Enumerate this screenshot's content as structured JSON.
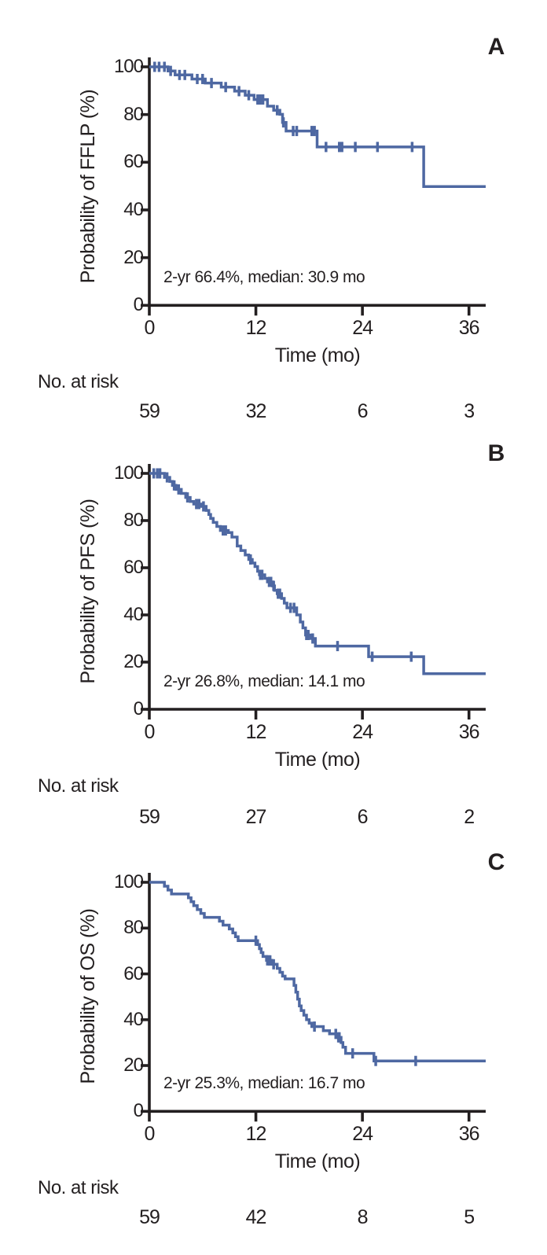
{
  "figure": {
    "colors": {
      "curve": "#4e68a2",
      "axis": "#231f20",
      "text": "#231f20"
    },
    "panels": [
      {
        "label": "A",
        "y_axis_title": "Probability of FFLP (%)",
        "x_axis_title": "Time (mo)",
        "annotation": "2-yr 66.4%, median: 30.9 mo",
        "two_year_pct": 66.4,
        "median_mo": 30.9,
        "no_at_risk_label": "No. at risk",
        "risk_counts": [
          "59",
          "32",
          "6",
          "3"
        ],
        "chart_data": {
          "type": "line",
          "subtype": "kaplan-meier-step",
          "title": "",
          "xlabel": "Time (mo)",
          "ylabel": "Probability of FFLP (%)",
          "xlim": [
            0,
            37.9
          ],
          "ylim": [
            0,
            100
          ],
          "x_ticks": [
            0,
            12,
            24,
            36
          ],
          "y_ticks": [
            0,
            20,
            40,
            60,
            80,
            100
          ],
          "steps": [
            [
              0,
              100
            ],
            [
              2.1,
              98.3
            ],
            [
              2.9,
              96.6
            ],
            [
              4.8,
              94.9
            ],
            [
              6.3,
              93.2
            ],
            [
              8.1,
              91.5
            ],
            [
              9.6,
              89.8
            ],
            [
              10.8,
              88.1
            ],
            [
              11.8,
              86.3
            ],
            [
              13.3,
              83.5
            ],
            [
              14.0,
              81.8
            ],
            [
              14.7,
              80.1
            ],
            [
              15.0,
              76.7
            ],
            [
              15.4,
              73.1
            ],
            [
              18.9,
              66.4
            ],
            [
              30.9,
              49.8
            ]
          ],
          "censors": [
            [
              0.6,
              100
            ],
            [
              1.1,
              100
            ],
            [
              1.7,
              100
            ],
            [
              2.4,
              98.3
            ],
            [
              3.4,
              96.6
            ],
            [
              4.0,
              96.6
            ],
            [
              5.4,
              94.9
            ],
            [
              6.0,
              94.9
            ],
            [
              7.0,
              93.2
            ],
            [
              8.6,
              91.5
            ],
            [
              10.1,
              89.8
            ],
            [
              11.2,
              88.1
            ],
            [
              12.2,
              86.3
            ],
            [
              12.5,
              86.3
            ],
            [
              12.8,
              86.3
            ],
            [
              14.4,
              81.8
            ],
            [
              15.1,
              76.7
            ],
            [
              16.2,
              73.1
            ],
            [
              16.6,
              73.1
            ],
            [
              18.3,
              73.1
            ],
            [
              18.6,
              73.1
            ],
            [
              19.9,
              66.4
            ],
            [
              21.4,
              66.4
            ],
            [
              21.7,
              66.4
            ],
            [
              23.2,
              66.4
            ],
            [
              25.7,
              66.4
            ],
            [
              29.6,
              66.4
            ]
          ]
        }
      },
      {
        "label": "B",
        "y_axis_title": "Probability of PFS (%)",
        "x_axis_title": "Time (mo)",
        "annotation": "2-yr 26.8%, median: 14.1 mo",
        "two_year_pct": 26.8,
        "median_mo": 14.1,
        "no_at_risk_label": "No. at risk",
        "risk_counts": [
          "59",
          "27",
          "6",
          "2"
        ],
        "chart_data": {
          "type": "line",
          "subtype": "kaplan-meier-step",
          "title": "",
          "xlabel": "Time (mo)",
          "ylabel": "Probability of PFS (%)",
          "xlim": [
            0,
            37.9
          ],
          "ylim": [
            0,
            100
          ],
          "x_ticks": [
            0,
            12,
            24,
            36
          ],
          "y_ticks": [
            0,
            20,
            40,
            60,
            80,
            100
          ],
          "steps": [
            [
              0,
              100
            ],
            [
              1.7,
              98.3
            ],
            [
              2.3,
              96.6
            ],
            [
              2.6,
              94.9
            ],
            [
              3.0,
              93.2
            ],
            [
              3.6,
              91.5
            ],
            [
              4.1,
              89.8
            ],
            [
              4.6,
              88.1
            ],
            [
              5.0,
              87.0
            ],
            [
              5.9,
              86.0
            ],
            [
              6.4,
              84.3
            ],
            [
              6.7,
              82.6
            ],
            [
              6.9,
              80.9
            ],
            [
              7.2,
              79.2
            ],
            [
              7.6,
              77.5
            ],
            [
              8.0,
              75.8
            ],
            [
              8.9,
              74.9
            ],
            [
              9.3,
              73.0
            ],
            [
              9.9,
              69.2
            ],
            [
              10.3,
              67.3
            ],
            [
              10.8,
              65.4
            ],
            [
              11.2,
              63.5
            ],
            [
              11.6,
              62.0
            ],
            [
              11.9,
              60.5
            ],
            [
              12.2,
              58.5
            ],
            [
              12.4,
              57.0
            ],
            [
              13.0,
              55.5
            ],
            [
              13.3,
              54.0
            ],
            [
              13.9,
              52.3
            ],
            [
              14.1,
              50.4
            ],
            [
              14.4,
              49.0
            ],
            [
              14.9,
              47.0
            ],
            [
              15.2,
              45.0
            ],
            [
              15.5,
              43.0
            ],
            [
              16.6,
              40.0
            ],
            [
              17.0,
              37.0
            ],
            [
              17.3,
              34.5
            ],
            [
              17.6,
              31.5
            ],
            [
              18.2,
              30.0
            ],
            [
              18.7,
              26.8
            ],
            [
              24.7,
              22.3
            ],
            [
              30.9,
              15.1
            ]
          ],
          "censors": [
            [
              0.5,
              100
            ],
            [
              0.9,
              100
            ],
            [
              1.2,
              100
            ],
            [
              2.0,
              98.3
            ],
            [
              2.8,
              94.9
            ],
            [
              3.3,
              93.2
            ],
            [
              4.3,
              89.8
            ],
            [
              5.3,
              87.0
            ],
            [
              5.6,
              87.0
            ],
            [
              6.1,
              86.0
            ],
            [
              8.3,
              75.8
            ],
            [
              8.6,
              75.8
            ],
            [
              11.4,
              63.5
            ],
            [
              12.5,
              57.0
            ],
            [
              12.7,
              57.0
            ],
            [
              13.5,
              54.0
            ],
            [
              13.7,
              54.0
            ],
            [
              14.0,
              52.3
            ],
            [
              14.5,
              49.0
            ],
            [
              14.7,
              49.0
            ],
            [
              15.9,
              43.0
            ],
            [
              16.3,
              43.0
            ],
            [
              17.7,
              31.5
            ],
            [
              17.9,
              31.5
            ],
            [
              18.4,
              30.0
            ],
            [
              21.2,
              26.8
            ],
            [
              25.1,
              22.3
            ],
            [
              29.5,
              22.3
            ]
          ]
        }
      },
      {
        "label": "C",
        "y_axis_title": "Probability of OS (%)",
        "x_axis_title": "Time (mo)",
        "annotation": "2-yr 25.3%, median: 16.7 mo",
        "two_year_pct": 25.3,
        "median_mo": 16.7,
        "no_at_risk_label": "No. at risk",
        "risk_counts": [
          "59",
          "42",
          "8",
          "5"
        ],
        "chart_data": {
          "type": "line",
          "subtype": "kaplan-meier-step",
          "title": "",
          "xlabel": "Time (mo)",
          "ylabel": "Probability of OS (%)",
          "xlim": [
            0,
            37.9
          ],
          "ylim": [
            0,
            100
          ],
          "x_ticks": [
            0,
            12,
            24,
            36
          ],
          "y_ticks": [
            0,
            20,
            40,
            60,
            80,
            100
          ],
          "steps": [
            [
              0,
              100
            ],
            [
              1.7,
              98.3
            ],
            [
              2.1,
              96.6
            ],
            [
              2.5,
              94.9
            ],
            [
              4.4,
              93.2
            ],
            [
              4.7,
              91.5
            ],
            [
              5.0,
              89.8
            ],
            [
              5.4,
              88.1
            ],
            [
              5.8,
              86.4
            ],
            [
              6.2,
              84.7
            ],
            [
              7.9,
              83.0
            ],
            [
              8.3,
              81.3
            ],
            [
              9.0,
              79.6
            ],
            [
              9.4,
              77.9
            ],
            [
              9.7,
              76.2
            ],
            [
              10.0,
              74.5
            ],
            [
              12.2,
              72.8
            ],
            [
              12.4,
              71.0
            ],
            [
              12.6,
              69.3
            ],
            [
              12.8,
              67.6
            ],
            [
              13.2,
              65.9
            ],
            [
              13.8,
              64.2
            ],
            [
              14.4,
              62.4
            ],
            [
              14.7,
              60.7
            ],
            [
              15.0,
              59.0
            ],
            [
              15.3,
              57.8
            ],
            [
              16.3,
              55.0
            ],
            [
              16.5,
              52.0
            ],
            [
              16.7,
              49.0
            ],
            [
              16.9,
              46.0
            ],
            [
              17.1,
              44.0
            ],
            [
              17.4,
              42.0
            ],
            [
              17.7,
              40.0
            ],
            [
              18.0,
              38.5
            ],
            [
              18.3,
              37.0
            ],
            [
              19.6,
              35.2
            ],
            [
              20.3,
              33.8
            ],
            [
              21.2,
              32.3
            ],
            [
              21.6,
              30.0
            ],
            [
              21.8,
              28.0
            ],
            [
              22.1,
              25.3
            ],
            [
              25.3,
              22.0
            ]
          ],
          "censors": [
            [
              12.0,
              74.5
            ],
            [
              13.3,
              65.9
            ],
            [
              13.5,
              65.9
            ],
            [
              13.6,
              65.9
            ],
            [
              14.0,
              64.2
            ],
            [
              18.6,
              37.0
            ],
            [
              21.0,
              33.8
            ],
            [
              21.3,
              32.3
            ],
            [
              21.4,
              32.3
            ],
            [
              22.9,
              25.3
            ],
            [
              25.5,
              22.0
            ],
            [
              30.0,
              22.0
            ]
          ]
        }
      }
    ]
  }
}
